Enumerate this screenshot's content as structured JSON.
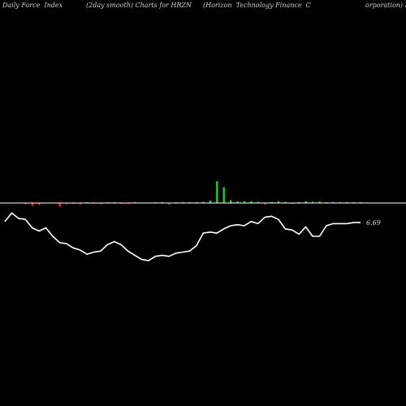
{
  "header": {
    "t1": "Daily Force  Index",
    "t2": "(2day smooth) Charts for HRZN",
    "t3": "(Horizon  Technology Finance  C",
    "t4": "orporation) M"
  },
  "chart_data": {
    "type": "line+bar",
    "last_value_label": "6.69",
    "colors": {
      "line": "#ffffff",
      "baseline": "#ffffff",
      "bar_up": "#22cc22",
      "bar_down": "#ee2222"
    },
    "line_y_range": [
      0,
      100
    ],
    "line": [
      44,
      52,
      47,
      46,
      38,
      35,
      38,
      30,
      24,
      23,
      19,
      17,
      13,
      15,
      16,
      22,
      25,
      22,
      16,
      12,
      8,
      7,
      11,
      12,
      11,
      14,
      15,
      16,
      21,
      33,
      34,
      33,
      37,
      40,
      41,
      40,
      44,
      42,
      48,
      49,
      46,
      37,
      36,
      32,
      39,
      30,
      30,
      40,
      42,
      42,
      42,
      43,
      43
    ],
    "bars_range": [
      -1,
      1
    ],
    "bars": [
      0,
      0,
      0,
      -0.05,
      -0.12,
      -0.08,
      0,
      0,
      -0.15,
      -0.05,
      -0.04,
      -0.06,
      0.02,
      -0.03,
      -0.04,
      0.03,
      0.02,
      -0.02,
      -0.03,
      0.04,
      0,
      0,
      0.03,
      0.02,
      -0.06,
      0.02,
      0.02,
      0.03,
      0.03,
      0.05,
      0.1,
      0.9,
      0.65,
      0.12,
      0.07,
      0.08,
      0.07,
      0.05,
      -0.06,
      0.04,
      0.07,
      0.05,
      -0.04,
      0.03,
      0.07,
      0.05,
      0.06,
      0.03,
      0.04,
      0.03,
      0.02,
      0.02,
      0.02
    ]
  }
}
